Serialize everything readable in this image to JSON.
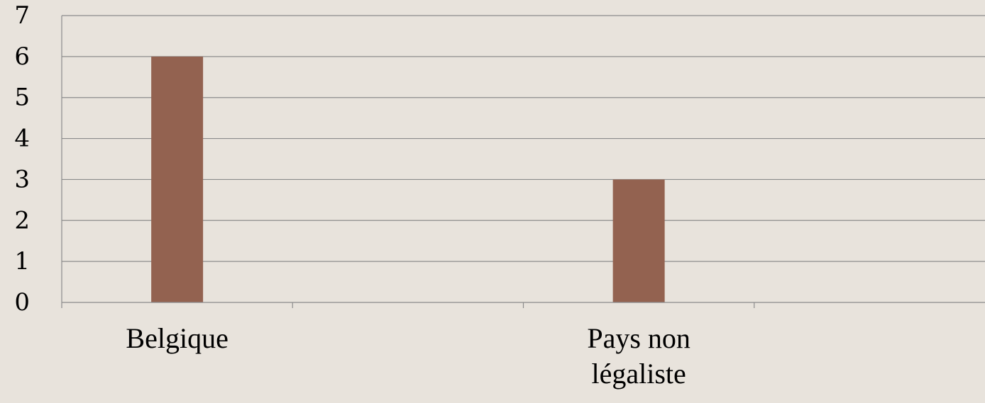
{
  "chart_data": {
    "type": "bar",
    "categories": [
      "Belgique",
      "",
      "Pays non légaliste",
      ""
    ],
    "category_lines": [
      [
        "Belgique"
      ],
      [],
      [
        "Pays non",
        "légaliste"
      ],
      []
    ],
    "values": [
      6,
      null,
      3,
      null
    ],
    "ylim": [
      0,
      7
    ],
    "yticks": [
      "0",
      "1",
      "2",
      "3",
      "4",
      "5",
      "6",
      "7"
    ],
    "grid": true,
    "legend": "none",
    "title": "",
    "xlabel": "",
    "ylabel": ""
  },
  "colors": {
    "background": "#E8E3DC",
    "bar": "#936250",
    "grid": "#8C8C8C",
    "axis": "#8C8C8C"
  }
}
